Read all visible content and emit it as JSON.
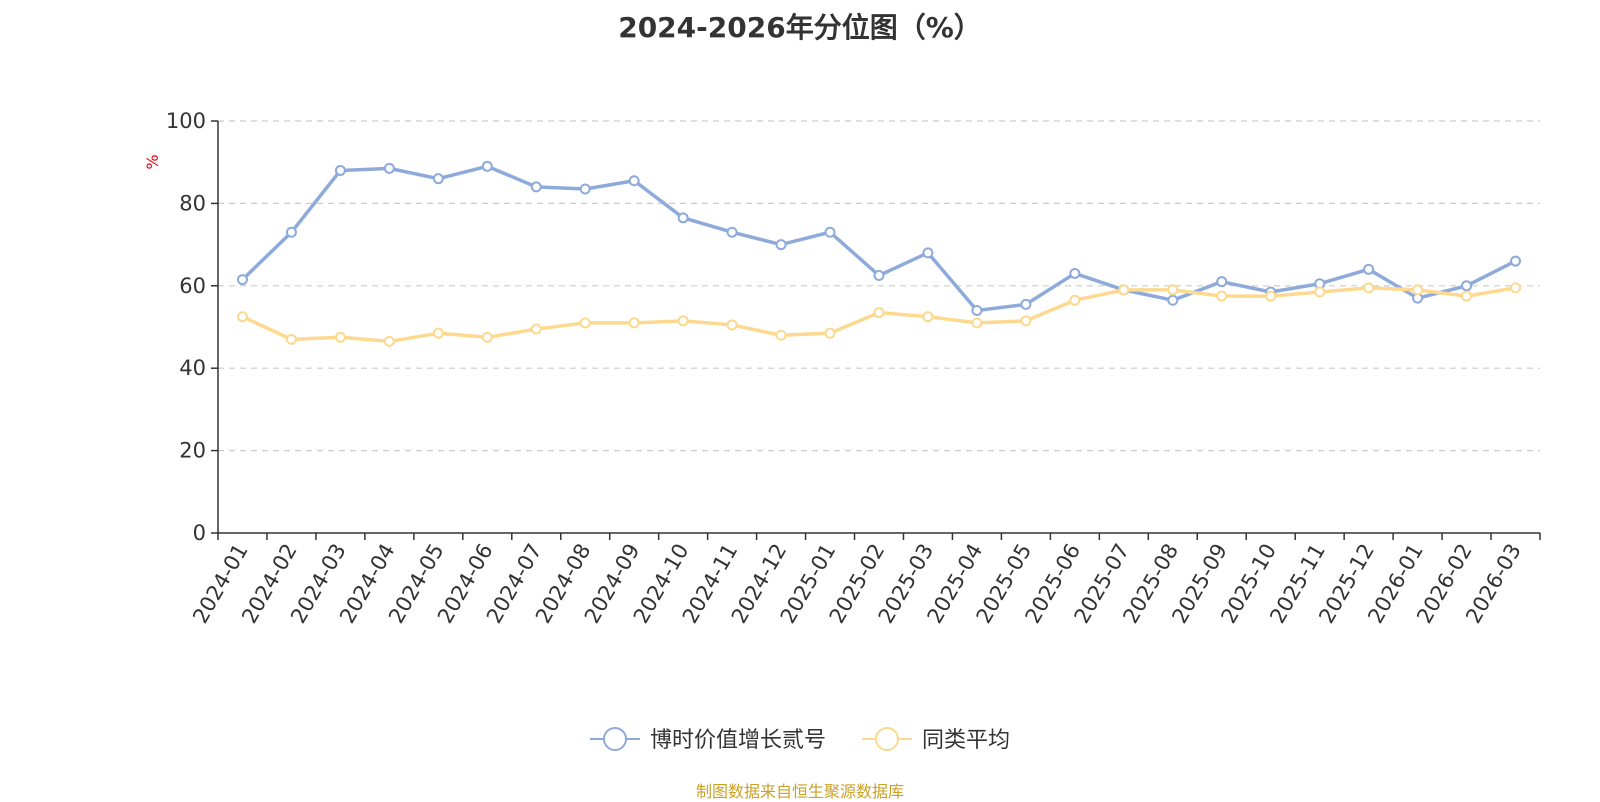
{
  "chart_data": {
    "type": "line",
    "title": "2024-2026年分位图（%）",
    "ylabel": "%",
    "ylabel_color": "#e8000b",
    "ylim": [
      0,
      100
    ],
    "yticks": [
      0,
      20,
      40,
      60,
      80,
      100
    ],
    "grid": true,
    "legend_position": "bottom-center",
    "categories": [
      "2024-01",
      "2024-02",
      "2024-03",
      "2024-04",
      "2024-05",
      "2024-06",
      "2024-07",
      "2024-08",
      "2024-09",
      "2024-10",
      "2024-11",
      "2024-12",
      "2025-01",
      "2025-02",
      "2025-03",
      "2025-04",
      "2025-05",
      "2025-06",
      "2025-07",
      "2025-08",
      "2025-09",
      "2025-10",
      "2025-11",
      "2025-12",
      "2026-01",
      "2026-02",
      "2026-03"
    ],
    "series": [
      {
        "name": "博时价值增长贰号",
        "color": "#8eaadb",
        "values": [
          61.5,
          73.0,
          88.0,
          88.5,
          86.0,
          89.0,
          84.0,
          83.5,
          85.5,
          76.5,
          73.0,
          70.0,
          73.0,
          62.5,
          68.0,
          54.0,
          55.5,
          63.0,
          59.0,
          56.5,
          61.0,
          58.5,
          60.5,
          64.0,
          57.0,
          60.0,
          66.0
        ]
      },
      {
        "name": "同类平均",
        "color": "#fcd98e",
        "values": [
          52.5,
          47.0,
          47.5,
          46.5,
          48.5,
          47.5,
          49.5,
          51.0,
          51.0,
          51.5,
          50.5,
          48.0,
          48.5,
          53.5,
          52.5,
          51.0,
          51.5,
          56.5,
          59.0,
          59.0,
          57.5,
          57.5,
          58.5,
          59.5,
          59.0,
          57.5,
          59.5
        ]
      }
    ]
  },
  "footer": "制图数据来自恒生聚源数据库"
}
